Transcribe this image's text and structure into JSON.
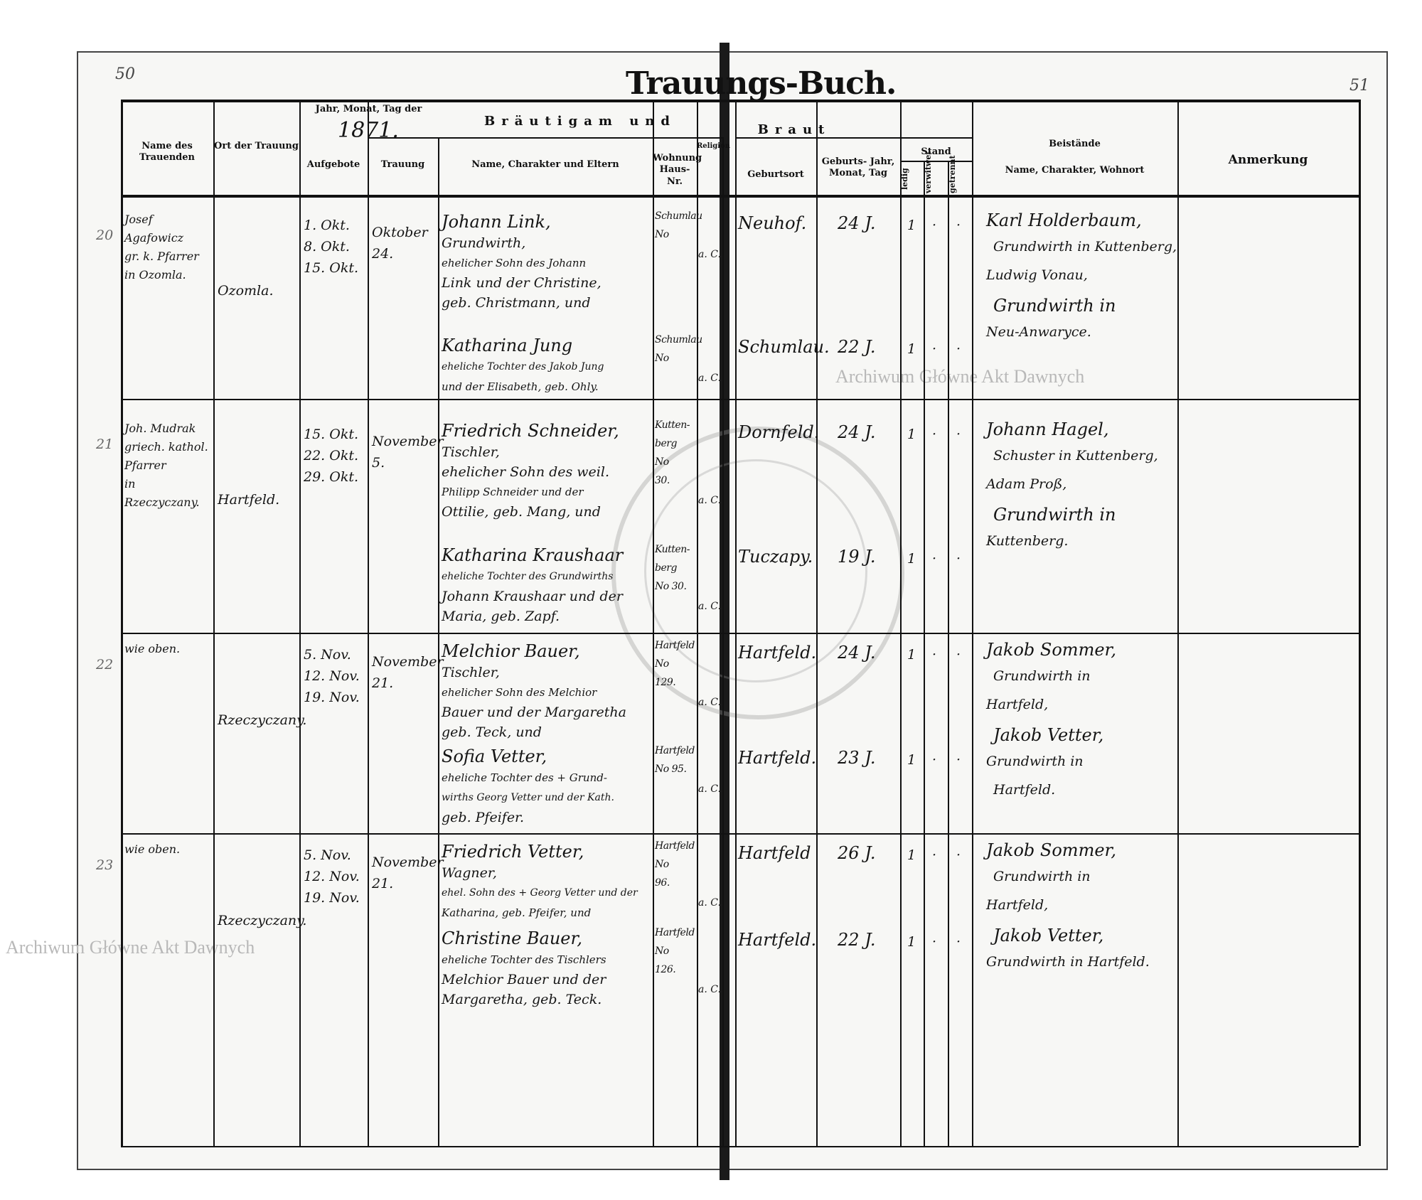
{
  "page_numbers": {
    "left": "50",
    "right": "51"
  },
  "title": "Trauungs-Buch.",
  "watermark": "Archiwum Główne Akt Dawnych",
  "seal_text": "ARCHIWUM GŁÓWNE AKT DAWNYCH",
  "headers": {
    "officiant": "Name des Trauenden",
    "place": "Ort der Trauung",
    "dates_group": "Jahr, Monat, Tag der",
    "year": "1871.",
    "banns": "Aufgebote",
    "wedding": "Trauung",
    "couple_group_left": "Bräutigam und",
    "couple_group_right": "Braut",
    "name": "Name, Charakter und Eltern",
    "residence": "Wohnung Haus-Nr.",
    "religion": "Religion",
    "birthplace": "Geburtsort",
    "birthdate": "Geburts- Jahr, Monat, Tag",
    "status": "Stand",
    "single": "ledig",
    "widowed": "verwitwet",
    "separated": "getrennt",
    "witnesses_title": "Beistände",
    "witnesses_sub": "Name, Charakter, Wohnort",
    "remarks": "Anmerkung"
  },
  "entries": [
    {
      "number": "20",
      "officiant": [
        "Josef Agafowicz",
        "gr. k. Pfarrer",
        "in Ozomla."
      ],
      "place": "Ozomla.",
      "banns": [
        "1. Okt.",
        "8. Okt.",
        "15. Okt."
      ],
      "wedding": [
        "Oktober",
        "24."
      ],
      "groom": {
        "lines": [
          "Johann Link,",
          "Grundwirth,",
          "ehelicher Sohn des Johann",
          "Link und der Christine,",
          "geb. Christmann, und"
        ],
        "residence": [
          "Schumlau",
          "No"
        ],
        "religion": "a. C.",
        "birthplace": "Neuhof.",
        "age": "24 J.",
        "single": "1"
      },
      "bride": {
        "lines": [
          "Katharina Jung",
          "eheliche Tochter des Jakob Jung",
          "und der Elisabeth, geb. Ohly."
        ],
        "residence": [
          "Schumlau",
          "No"
        ],
        "religion": "a. C.",
        "birthplace": "Schumlau.",
        "age": "22 J.",
        "single": "1"
      },
      "witnesses": [
        "Karl Holderbaum,",
        "Grundwirth in Kuttenberg,",
        "Ludwig Vonau,",
        "Grundwirth in",
        "Neu-Anwaryce."
      ]
    },
    {
      "number": "21",
      "officiant": [
        "Joh. Mudrak",
        "griech. kathol.",
        "Pfarrer",
        "in",
        "Rzeczyczany."
      ],
      "place": "Hartfeld.",
      "banns": [
        "15. Okt.",
        "22. Okt.",
        "29. Okt."
      ],
      "wedding": [
        "November",
        "5."
      ],
      "groom": {
        "lines": [
          "Friedrich Schneider,",
          "Tischler,",
          "ehelicher Sohn des weil.",
          "Philipp Schneider und der",
          "Ottilie, geb. Mang, und"
        ],
        "residence": [
          "Kutten-",
          "berg",
          "No",
          "30."
        ],
        "religion": "a. C.",
        "birthplace": "Dornfeld.",
        "age": "24 J.",
        "single": "1"
      },
      "bride": {
        "lines": [
          "Katharina Kraushaar",
          "eheliche Tochter des Grundwirths",
          "Johann Kraushaar und der",
          "Maria, geb. Zapf."
        ],
        "residence": [
          "Kutten-",
          "berg",
          "No 30."
        ],
        "religion": "a. C.",
        "birthplace": "Tuczapy.",
        "age": "19 J.",
        "single": "1"
      },
      "witnesses": [
        "Johann Hagel,",
        "Schuster in Kuttenberg,",
        "Adam Proß,",
        "Grundwirth in",
        "Kuttenberg."
      ]
    },
    {
      "number": "22",
      "officiant": [
        "wie oben."
      ],
      "place": "Rzeczyczany.",
      "banns": [
        "5. Nov.",
        "12. Nov.",
        "19. Nov."
      ],
      "wedding": [
        "November",
        "21."
      ],
      "groom": {
        "lines": [
          "Melchior Bauer,",
          "Tischler,",
          "ehelicher Sohn des Melchior",
          "Bauer und der Margaretha",
          "geb. Teck, und"
        ],
        "residence": [
          "Hartfeld",
          "No",
          "129."
        ],
        "religion": "a. C.",
        "birthplace": "Hartfeld.",
        "age": "24 J.",
        "single": "1"
      },
      "bride": {
        "lines": [
          "Sofia Vetter,",
          "eheliche Tochter des + Grund-",
          "wirths Georg Vetter und der Kath.",
          "geb. Pfeifer."
        ],
        "residence": [
          "Hartfeld",
          "No 95."
        ],
        "religion": "a. C.",
        "birthplace": "Hartfeld.",
        "age": "23 J.",
        "single": "1"
      },
      "witnesses": [
        "Jakob Sommer,",
        "Grundwirth in",
        "Hartfeld,",
        "Jakob Vetter,",
        "Grundwirth in",
        "Hartfeld."
      ]
    },
    {
      "number": "23",
      "officiant": [
        "wie oben."
      ],
      "place": "Rzeczyczany.",
      "banns": [
        "5. Nov.",
        "12. Nov.",
        "19. Nov."
      ],
      "wedding": [
        "November",
        "21."
      ],
      "groom": {
        "lines": [
          "Friedrich Vetter,",
          "Wagner,",
          "ehel. Sohn des + Georg Vetter und der",
          "Katharina, geb. Pfeifer, und"
        ],
        "residence": [
          "Hartfeld",
          "No",
          "96."
        ],
        "religion": "a. C.",
        "birthplace": "Hartfeld",
        "age": "26 J.",
        "single": "1"
      },
      "bride": {
        "lines": [
          "Christine Bauer,",
          "eheliche Tochter des Tischlers",
          "Melchior Bauer und der",
          "Margaretha, geb. Teck."
        ],
        "residence": [
          "Hartfeld",
          "No",
          "126."
        ],
        "religion": "a. C.",
        "birthplace": "Hartfeld.",
        "age": "22 J.",
        "single": "1"
      },
      "witnesses": [
        "Jakob Sommer,",
        "Grundwirth in",
        "Hartfeld,",
        "Jakob Vetter,",
        "Grundwirth in Hartfeld."
      ]
    }
  ]
}
